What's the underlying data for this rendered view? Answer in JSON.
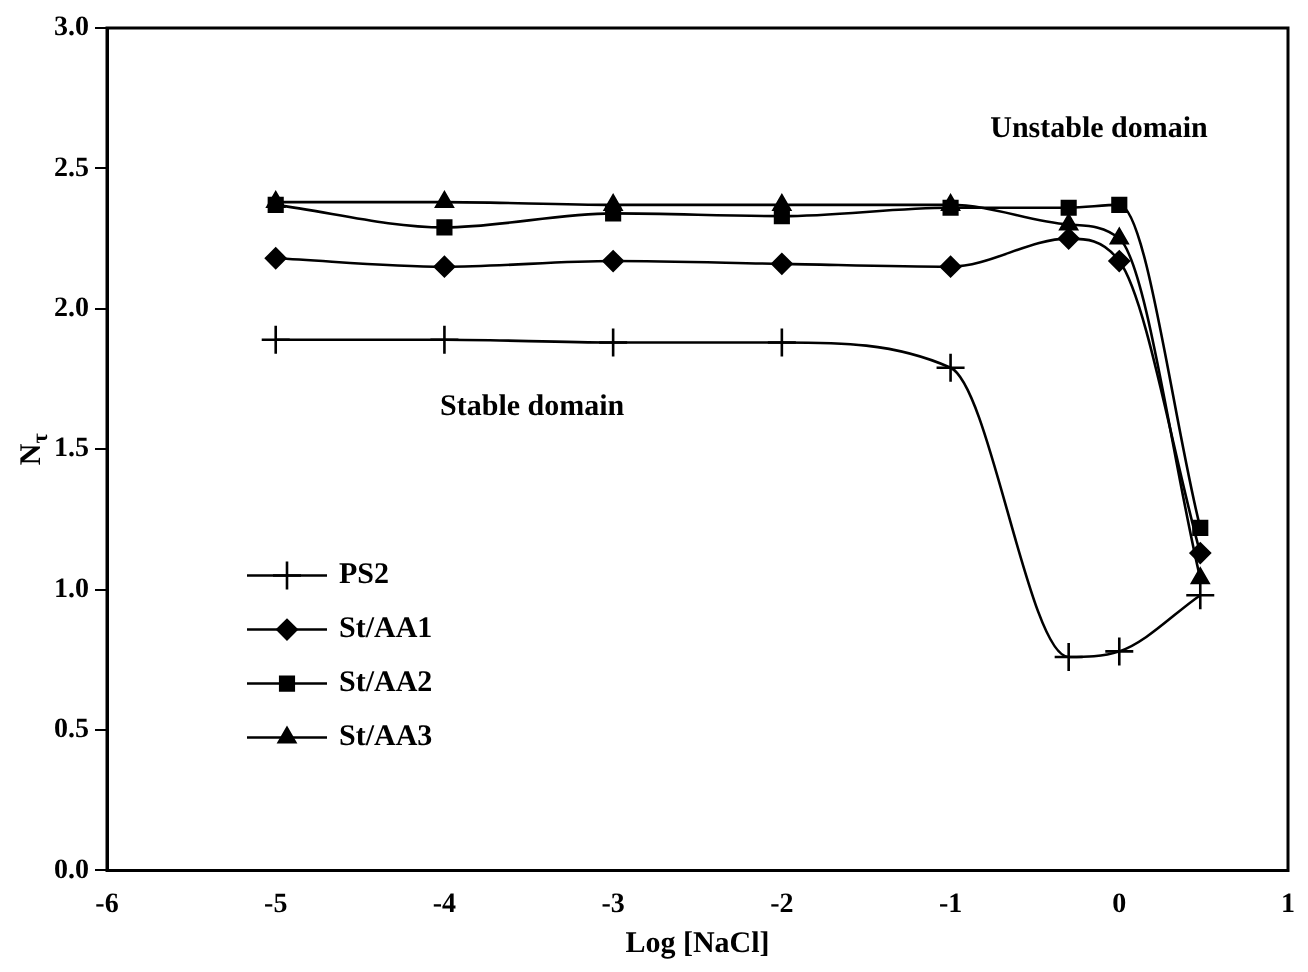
{
  "chart_data": {
    "type": "line",
    "xlabel": "Log [NaCl]",
    "ylabel": "N$_{τ}$",
    "x": [
      -5,
      -4,
      -3,
      -2,
      -1,
      -0.3,
      0,
      0.48
    ],
    "series": [
      {
        "name": "PS2",
        "color": "#000000",
        "marker": "cross",
        "values": [
          1.89,
          1.89,
          1.88,
          1.88,
          1.79,
          0.76,
          0.78,
          0.98
        ]
      },
      {
        "name": "St/AA1",
        "color": "#000000",
        "marker": "diamond",
        "values": [
          2.18,
          2.15,
          2.17,
          2.16,
          2.15,
          2.25,
          2.17,
          1.13
        ]
      },
      {
        "name": "St/AA2",
        "color": "#000000",
        "marker": "square",
        "values": [
          2.37,
          2.29,
          2.34,
          2.33,
          2.36,
          2.36,
          2.37,
          1.22
        ]
      },
      {
        "name": "St/AA3",
        "color": "#000000",
        "marker": "triangle",
        "values": [
          2.38,
          2.38,
          2.37,
          2.37,
          2.37,
          2.3,
          2.25,
          1.04
        ]
      }
    ],
    "xlim": [
      -6,
      1
    ],
    "xticks": [
      -6,
      -5,
      -4,
      -3,
      -2,
      -1,
      0,
      1
    ],
    "ylim": [
      0,
      3
    ],
    "yticks": [
      {
        "value": 0,
        "label": "0.0"
      },
      {
        "value": 0.5,
        "label": "0.5"
      },
      {
        "value": 1,
        "label": "1.0"
      },
      {
        "value": 1.5,
        "label": "1.5"
      },
      {
        "value": 2,
        "label": "2.0"
      },
      {
        "value": 2.5,
        "label": "2.5"
      },
      {
        "value": 3,
        "label": "3.0"
      }
    ],
    "annotations": [
      "Unstable domain",
      "Stable domain"
    ],
    "legend": "bottom left",
    "grid": false
  }
}
